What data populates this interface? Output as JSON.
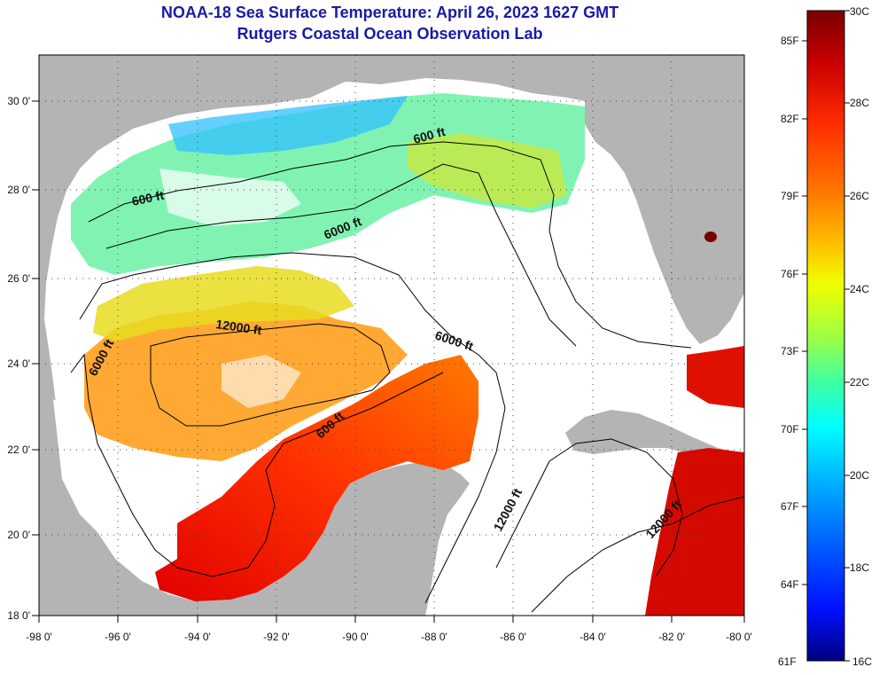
{
  "title": {
    "line1": "NOAA-18 Sea Surface Temperature:  April 26, 2023 1627 GMT",
    "line2": "Rutgers Coastal Ocean Observation Lab"
  },
  "map": {
    "lon_range": [
      -98,
      -80
    ],
    "lat_range": [
      18,
      31
    ],
    "lon_ticks": [
      "-98 0'",
      "-96 0'",
      "-94 0'",
      "-92 0'",
      "-90 0'",
      "-88 0'",
      "-86 0'",
      "-84 0'",
      "-82 0'",
      "-80 0'"
    ],
    "lat_ticks": [
      "18 0'",
      "20 0'",
      "22 0'",
      "24 0'",
      "26 0'",
      "28 0'",
      "30 0'"
    ],
    "land_color": "#b4b4b4",
    "cloud_color": "#ffffff",
    "contour_labels": [
      "600 ft",
      "6000 ft",
      "12000 ft",
      "6000 ft",
      "6000 ft",
      "600 ft",
      "12000 ft",
      "12000 ft"
    ]
  },
  "colorbar": {
    "f_labels": [
      "85F",
      "82F",
      "79F",
      "76F",
      "73F",
      "70F",
      "67F",
      "64F",
      "61F"
    ],
    "c_labels": [
      "30C",
      "28C",
      "26C",
      "24C",
      "22C",
      "20C",
      "18C",
      "16C"
    ],
    "colors": [
      "#7a0000",
      "#c80000",
      "#ff2a00",
      "#ff7800",
      "#ffc000",
      "#f0ff00",
      "#a0ff40",
      "#40ffa0",
      "#00ffff",
      "#00b4ff",
      "#0060ff",
      "#0010ff",
      "#000080"
    ]
  }
}
